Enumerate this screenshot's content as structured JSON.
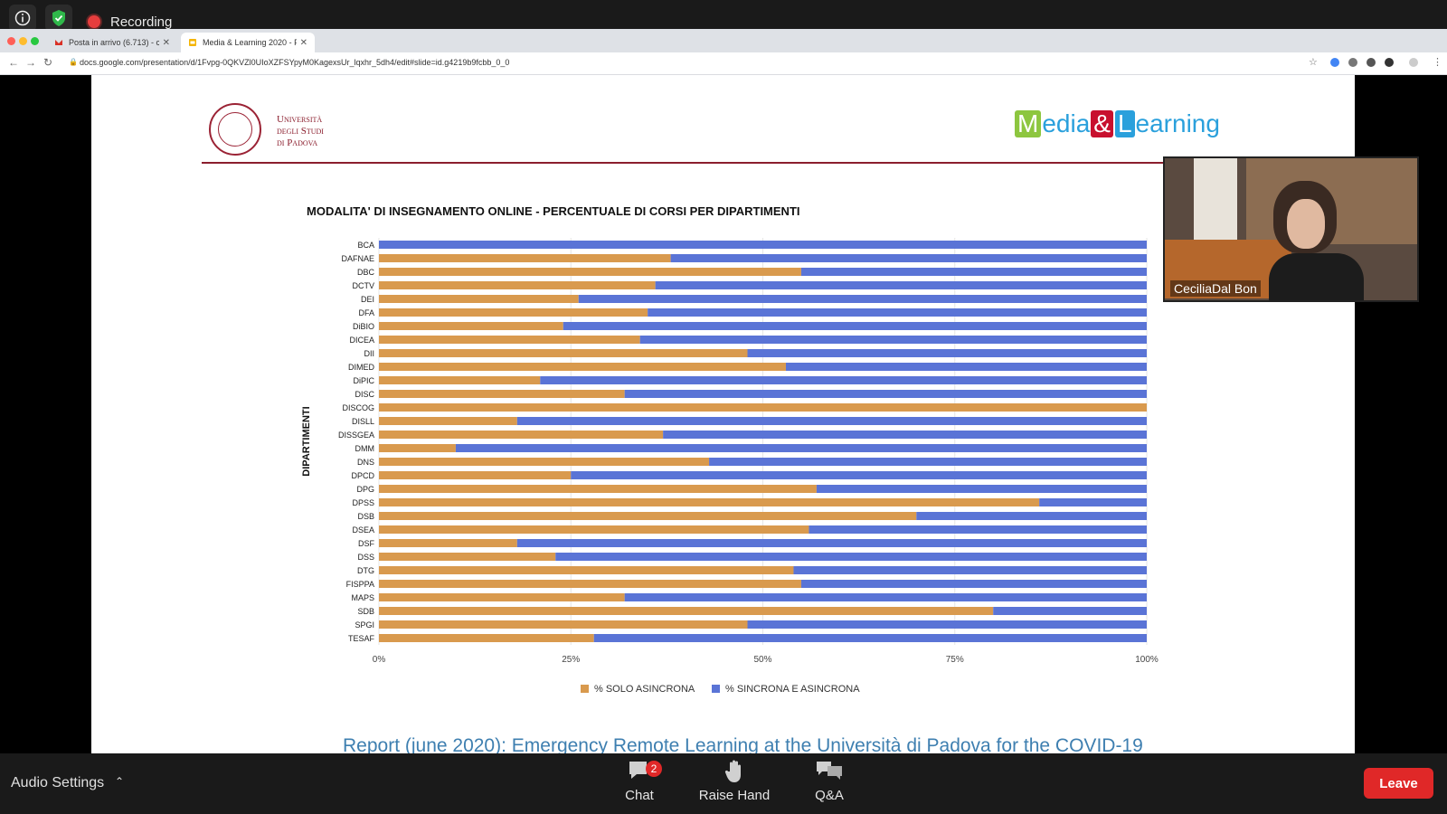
{
  "zoom": {
    "recording_label": "Recording",
    "audio_settings_label": "Audio Settings",
    "chat_label": "Chat",
    "chat_badge": "2",
    "raise_hand_label": "Raise Hand",
    "qa_label": "Q&A",
    "leave_label": "Leave"
  },
  "browser": {
    "tabs": [
      {
        "label": "Posta in arrivo (6.713) - cecili"
      },
      {
        "label": "Media & Learning 2020 - Pres"
      }
    ],
    "url": "docs.google.com/presentation/d/1Fvpg-0QKVZl0UIoXZFSYpyM0KagexsUr_lqxhr_5dh4/edit#slide=id.g4219b9fcbb_0_0"
  },
  "slide": {
    "university_line1": "Università",
    "university_line2": "degli Studi",
    "university_line3": "di Padova",
    "brand_m": "M",
    "brand_edia": "edia",
    "brand_amp": "&",
    "brand_l": "L",
    "brand_earning": "earning",
    "report_text": "Report (june 2020): Emergency Remote Learning at the Università di Padova for the  COVID-19"
  },
  "participant": {
    "name": "CeciliaDal Bon"
  },
  "colors": {
    "asincrona": "#d99a4e",
    "sincrona": "#5a74d6"
  },
  "chart_data": {
    "type": "bar",
    "orientation": "horizontal",
    "stacked": true,
    "title": "MODALITA' DI INSEGNAMENTO ONLINE - PERCENTUALE DI CORSI PER DIPARTIMENTI",
    "ylabel": "DIPARTIMENTI",
    "xlabel": "",
    "xlim": [
      0,
      100
    ],
    "xticks": [
      "0%",
      "25%",
      "50%",
      "75%",
      "100%"
    ],
    "grid": true,
    "legend_position": "bottom",
    "categories": [
      "BCA",
      "DAFNAE",
      "DBC",
      "DCTV",
      "DEI",
      "DFA",
      "DiBIO",
      "DICEA",
      "DII",
      "DIMED",
      "DiPIC",
      "DISC",
      "DISCOG",
      "DISLL",
      "DISSGEA",
      "DMM",
      "DNS",
      "DPCD",
      "DPG",
      "DPSS",
      "DSB",
      "DSEA",
      "DSF",
      "DSS",
      "DTG",
      "FISPPA",
      "MAPS",
      "SDB",
      "SPGI",
      "TESAF"
    ],
    "series": [
      {
        "name": "% SOLO ASINCRONA",
        "values": [
          0,
          38,
          55,
          36,
          26,
          35,
          24,
          34,
          48,
          53,
          21,
          32,
          100,
          18,
          37,
          10,
          43,
          25,
          57,
          86,
          70,
          56,
          18,
          23,
          54,
          55,
          32,
          80,
          48,
          28
        ]
      },
      {
        "name": "% SINCRONA E ASINCRONA",
        "values": [
          100,
          62,
          45,
          64,
          74,
          65,
          76,
          66,
          52,
          47,
          79,
          68,
          0,
          82,
          63,
          90,
          57,
          75,
          43,
          14,
          30,
          44,
          82,
          77,
          46,
          45,
          68,
          20,
          52,
          72
        ]
      }
    ]
  }
}
